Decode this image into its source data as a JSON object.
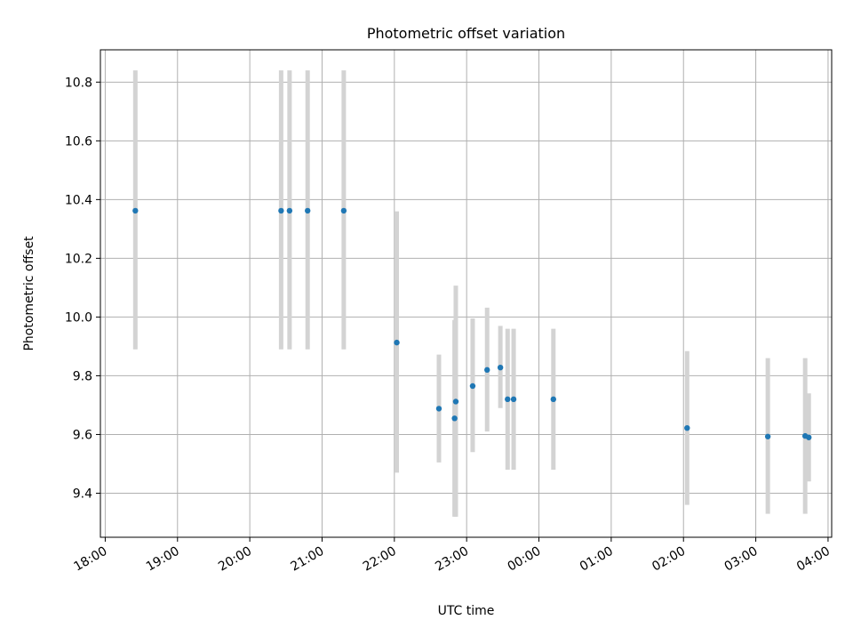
{
  "chart_data": {
    "type": "scatter",
    "title": "Photometric offset variation",
    "xlabel": "UTC time",
    "ylabel": "Photometric offset",
    "x_ticks": [
      "18:00",
      "19:00",
      "20:00",
      "21:00",
      "22:00",
      "23:00",
      "00:00",
      "01:00",
      "02:00",
      "03:00",
      "04:00"
    ],
    "y_ticks": [
      "9.4",
      "9.6",
      "9.8",
      "10.0",
      "10.2",
      "10.4",
      "10.6",
      "10.8"
    ],
    "xlim": [
      "17:56",
      "04:03"
    ],
    "ylim": [
      9.25,
      10.91
    ],
    "grid": true,
    "marker_color": "#1f77b4",
    "errorbar_color": "#d3d3d3",
    "points": [
      {
        "t": "18:25",
        "y": 10.362,
        "lo": 9.89,
        "hi": 10.84
      },
      {
        "t": "20:26",
        "y": 10.362,
        "lo": 9.89,
        "hi": 10.84
      },
      {
        "t": "20:33",
        "y": 10.362,
        "lo": 9.89,
        "hi": 10.84
      },
      {
        "t": "20:48",
        "y": 10.362,
        "lo": 9.89,
        "hi": 10.84
      },
      {
        "t": "21:18",
        "y": 10.362,
        "lo": 9.89,
        "hi": 10.84
      },
      {
        "t": "22:02",
        "y": 9.913,
        "lo": 9.47,
        "hi": 10.36
      },
      {
        "t": "22:37",
        "y": 9.688,
        "lo": 9.505,
        "hi": 9.872
      },
      {
        "t": "22:50",
        "y": 9.655,
        "lo": 9.32,
        "hi": 9.99
      },
      {
        "t": "22:51",
        "y": 9.712,
        "lo": 9.32,
        "hi": 10.107
      },
      {
        "t": "23:05",
        "y": 9.765,
        "lo": 9.54,
        "hi": 9.995
      },
      {
        "t": "23:17",
        "y": 9.82,
        "lo": 9.61,
        "hi": 10.032
      },
      {
        "t": "23:28",
        "y": 9.828,
        "lo": 9.69,
        "hi": 9.97
      },
      {
        "t": "23:34",
        "y": 9.72,
        "lo": 9.48,
        "hi": 9.96
      },
      {
        "t": "23:39",
        "y": 9.72,
        "lo": 9.48,
        "hi": 9.96
      },
      {
        "t": "00:12",
        "y": 9.72,
        "lo": 9.48,
        "hi": 9.96
      },
      {
        "t": "02:03",
        "y": 9.622,
        "lo": 9.36,
        "hi": 9.884
      },
      {
        "t": "03:10",
        "y": 9.593,
        "lo": 9.33,
        "hi": 9.86
      },
      {
        "t": "03:41",
        "y": 9.595,
        "lo": 9.33,
        "hi": 9.86
      },
      {
        "t": "03:44",
        "y": 9.59,
        "lo": 9.44,
        "hi": 9.74
      }
    ]
  }
}
